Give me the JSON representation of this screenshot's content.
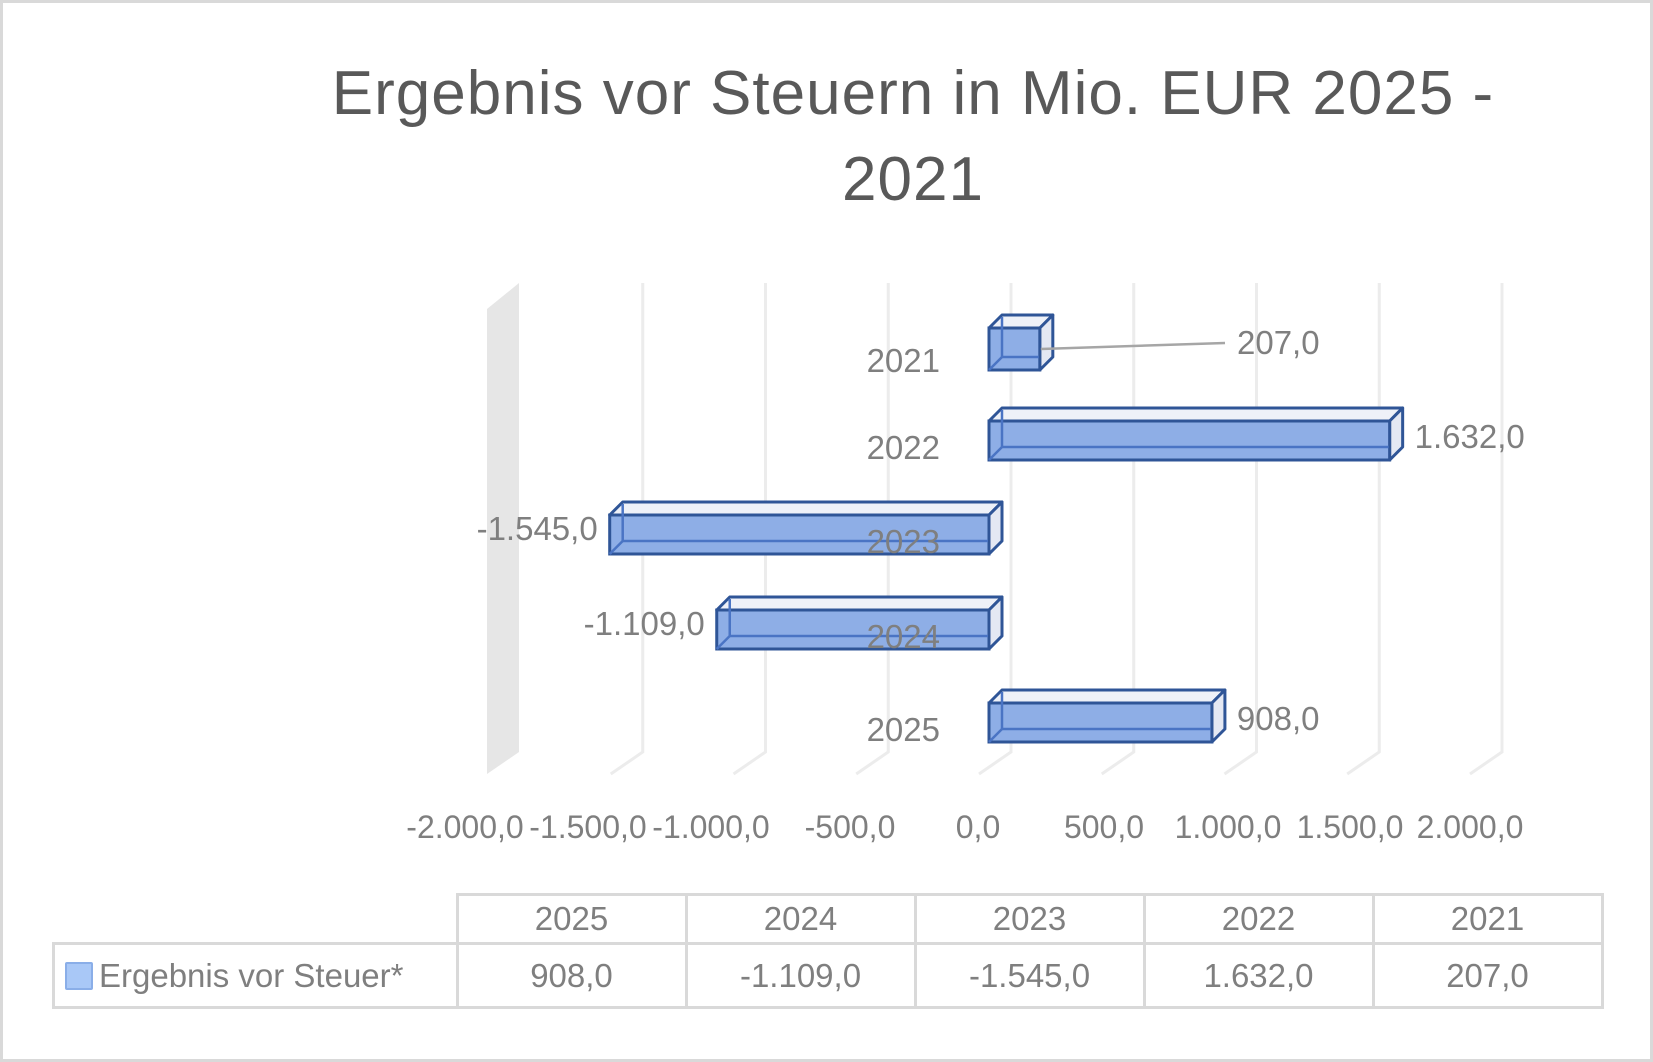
{
  "chart_data": {
    "type": "bar",
    "orientation": "horizontal",
    "style": "3d-clustered-bar",
    "title": "Ergebnis vor Steuern in Mio. EUR 2025 - 2021",
    "title_lines": [
      "Ergebnis vor Steuern in Mio. EUR 2025 -",
      "2021"
    ],
    "categories": [
      "2025",
      "2024",
      "2023",
      "2022",
      "2021"
    ],
    "series": [
      {
        "name": "Ergebnis vor Steuer*",
        "values": [
          908.0,
          -1109.0,
          -1545.0,
          1632.0,
          207.0
        ],
        "color": "#8eaee6",
        "edge_color": "#2f5597"
      }
    ],
    "data_labels": [
      "908,0",
      "-1.109,0",
      "-1.545,0",
      "1.632,0",
      "207,0"
    ],
    "xlabel": "",
    "ylabel": "",
    "xlim": [
      -2000,
      2000
    ],
    "x_ticks": [
      -2000,
      -1500,
      -1000,
      -500,
      0,
      500,
      1000,
      1500,
      2000
    ],
    "x_tick_labels": [
      "-2.000,0",
      "-1.500,0",
      "-1.000,0",
      "-500,0",
      "0,0",
      "500,0",
      "1.000,0",
      "1.500,0",
      "2.000,0"
    ],
    "grid": true,
    "legend_position": "data-table",
    "data_table": {
      "header": [
        "2025",
        "2024",
        "2023",
        "2022",
        "2021"
      ],
      "rows": [
        {
          "label": "Ergebnis vor Steuer*",
          "values": [
            "908,0",
            "-1.109,0",
            "-1.545,0",
            "1.632,0",
            "207,0"
          ]
        }
      ]
    }
  },
  "colors": {
    "text": "#7f7f7f",
    "title": "#595959",
    "bar_fill": "#8eaee6",
    "bar_edge": "#2f5597",
    "grid": "#ececec",
    "wall": "#e6e6e6",
    "border": "#d9d9d9"
  }
}
